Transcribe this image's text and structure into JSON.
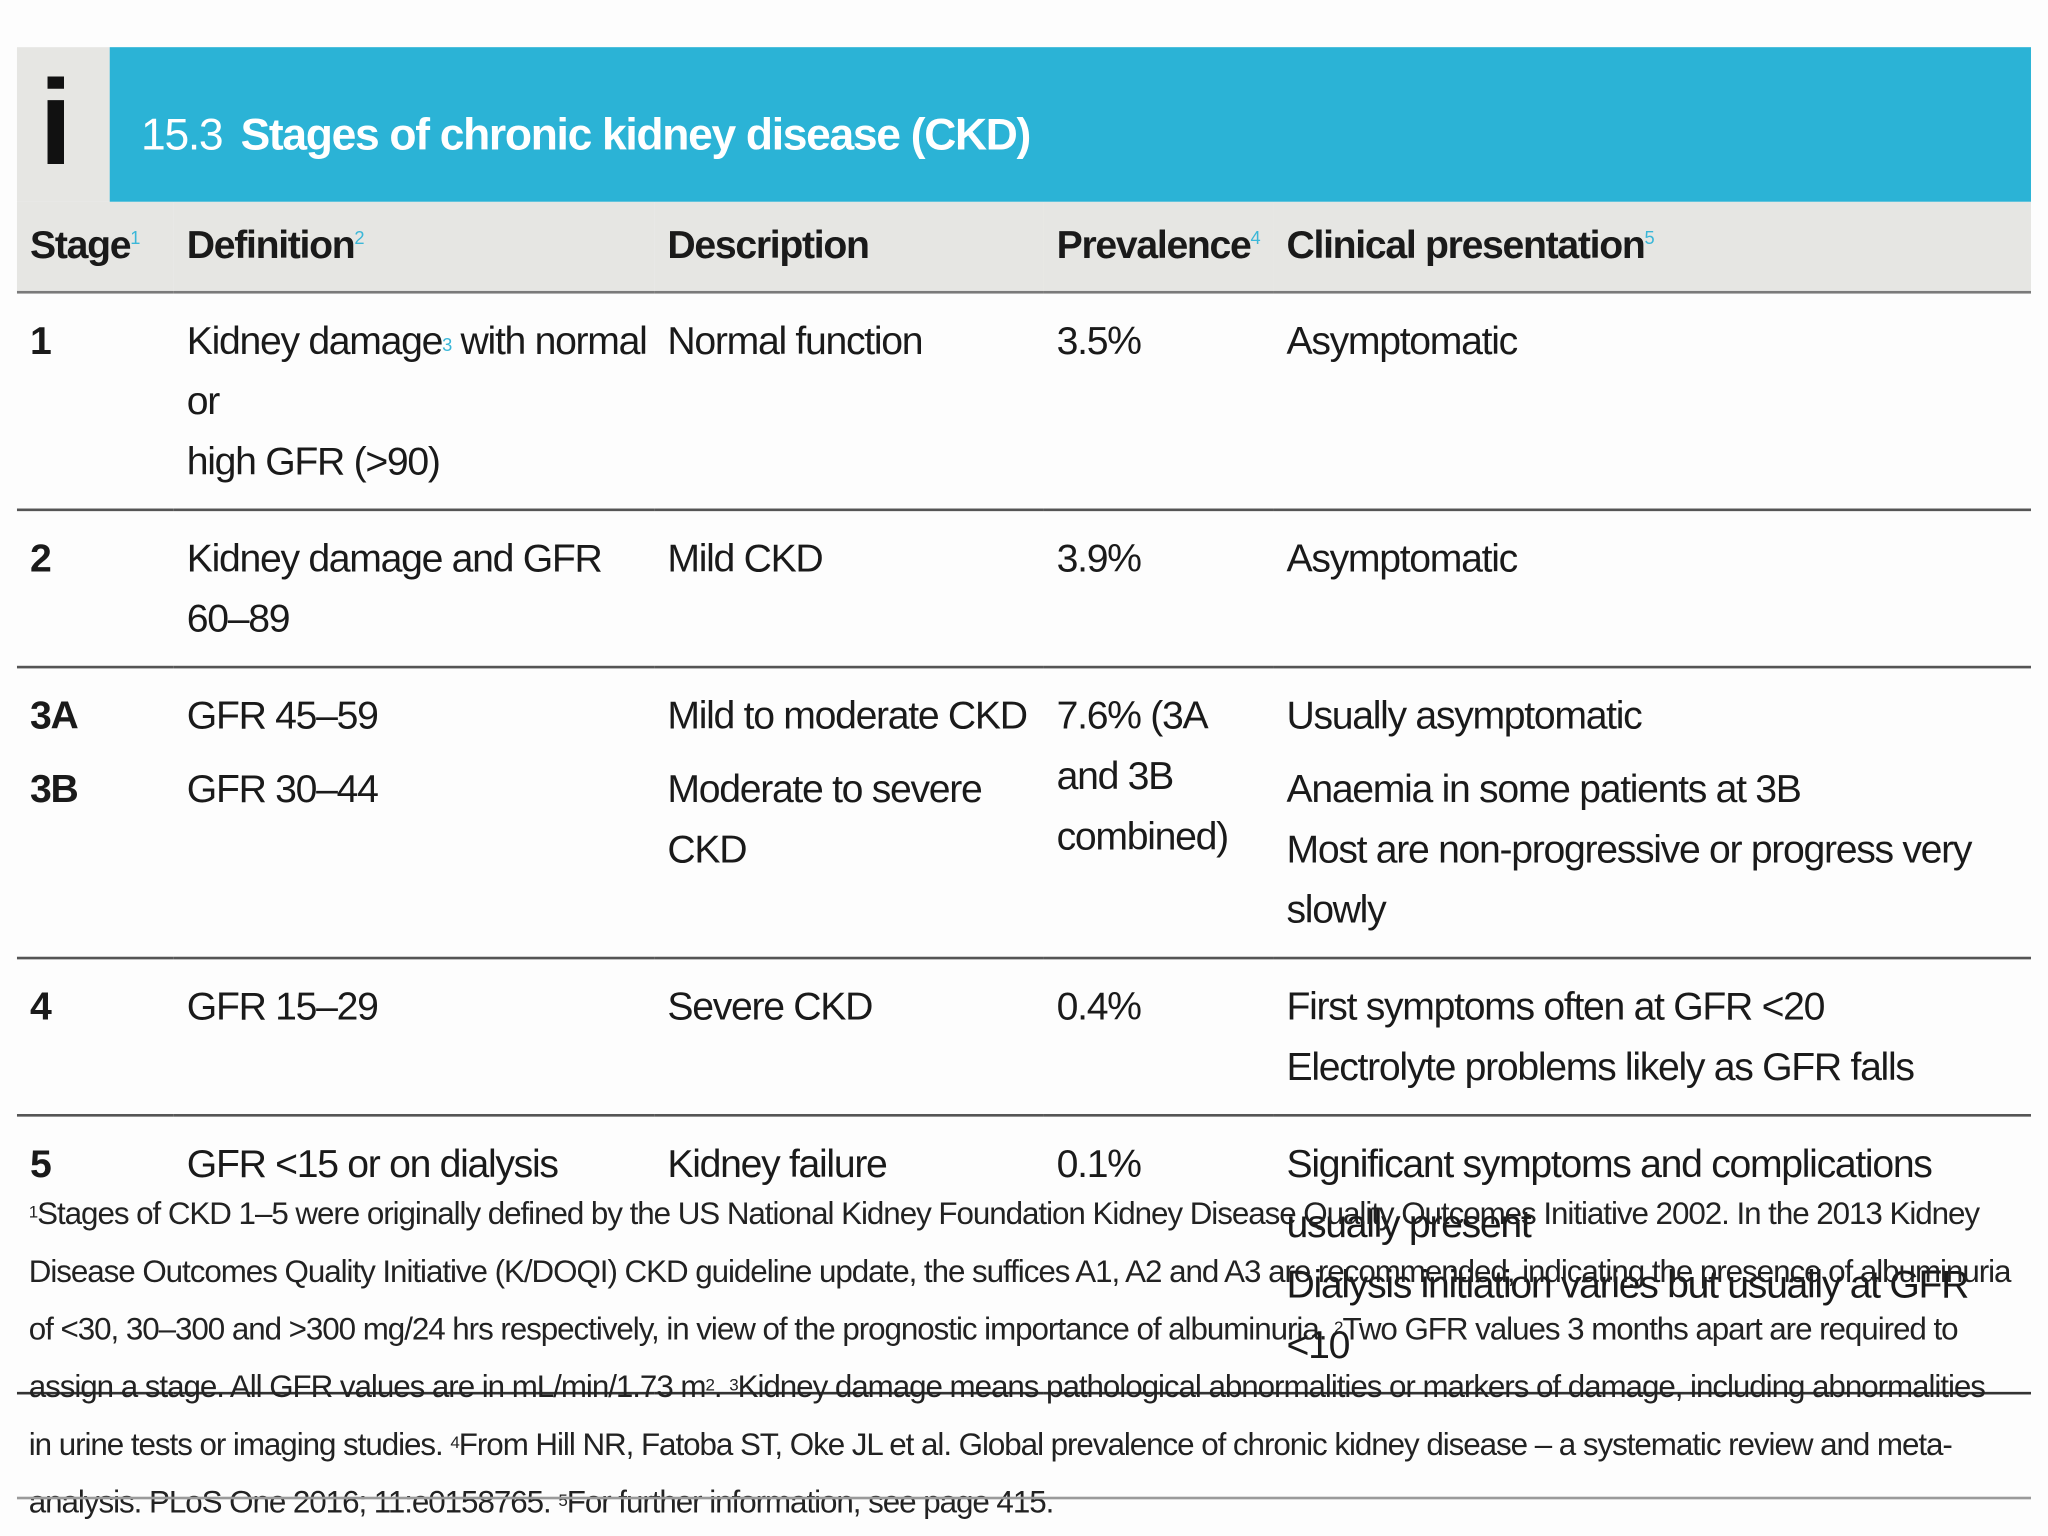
{
  "box": {
    "icon": "info-icon",
    "icon_glyph": "i",
    "number": "15.3",
    "title": "Stages of chronic kidney disease (CKD)",
    "accent_color": "#2bb3d6"
  },
  "headers": {
    "stage": "Stage",
    "stage_ref": "1",
    "definition": "Definition",
    "definition_ref": "2",
    "description": "Description",
    "prevalence": "Prevalence",
    "prevalence_ref": "4",
    "clinical": "Clinical presentation",
    "clinical_ref": "5"
  },
  "rows": [
    {
      "stage": "1",
      "definition_a": "Kidney damage",
      "definition_ref": "3",
      "definition_b": " with normal or",
      "definition_c": "high GFR (>90)",
      "description": "Normal function",
      "prevalence": "3.5%",
      "clinical": "Asymptomatic"
    },
    {
      "stage": "2",
      "definition_a": "Kidney damage and GFR",
      "definition_b": "60–89",
      "description": "Mild CKD",
      "prevalence": "3.9%",
      "clinical": "Asymptomatic"
    },
    {
      "stage_a": "3A",
      "stage_b": "3B",
      "definition_a": "GFR 45–59",
      "definition_b": "GFR 30–44",
      "description_a": "Mild to moderate CKD",
      "description_b": "Moderate to severe CKD",
      "prevalence_a": "7.6% (3A",
      "prevalence_b": "and 3B",
      "prevalence_c": "combined)",
      "clinical_a": "Usually asymptomatic",
      "clinical_b": "Anaemia in some patients at 3B",
      "clinical_c": "Most are non-progressive or progress very slowly"
    },
    {
      "stage": "4",
      "definition": "GFR 15–29",
      "description": "Severe CKD",
      "prevalence": "0.4%",
      "clinical_a": "First symptoms often at GFR <20",
      "clinical_b": "Electrolyte problems likely as GFR falls"
    },
    {
      "stage": "5",
      "definition": "GFR <15 or on dialysis",
      "description": "Kidney failure",
      "prevalence": "0.1%",
      "clinical_a": "Significant symptoms and complications usually present",
      "clinical_b": "Dialysis initiation varies but usually at GFR <10"
    }
  ],
  "footnote": {
    "ref1": "1",
    "text1": "Stages of CKD 1–5 were originally defined by the US National Kidney Foundation Kidney Disease Quality Outcomes Initiative 2002. In the 2013 Kidney Disease Outcomes Quality Initiative (K/DOQI) CKD guideline update, the suffices A1, A2 and A3 are recommended, indicating the presence of albuminuria of <30, 30–300 and >300 mg/24 hrs respectively, in view of the prognostic importance of albuminuria. ",
    "ref2": "2",
    "text2a": "Two GFR values 3 months apart are required to assign a stage. All GFR values are in mL/min/1.73 m",
    "sq": "2",
    "text2b": ". ",
    "ref3": "3",
    "text3": "Kidney damage means pathological abnormalities or markers of damage, including abnormalities in urine tests or imaging studies. ",
    "ref4": "4",
    "text4": "From Hill NR, Fatoba ST, Oke JL et al. Global prevalence of chronic kidney disease – a systematic review and meta-analysis. PLoS One 2016; 11:e0158765. ",
    "ref5": "5",
    "text5": "For further information, see page 415."
  }
}
